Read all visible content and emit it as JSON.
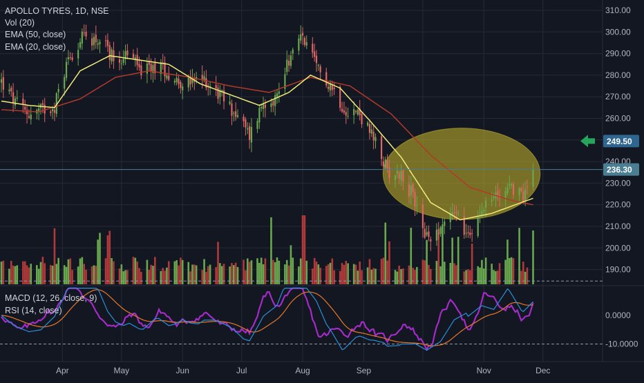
{
  "legend": {
    "symbol": "APOLLO TYRES, 1D, NSE",
    "volume": "Vol (20)",
    "ema50": "EMA (50, close)",
    "ema20": "EMA (20, close)",
    "macd": "MACD (12, 26, close, 9)",
    "rsi": "RSI (14, close)"
  },
  "colors": {
    "background": "#131722",
    "grid": "#262a36",
    "up": "#6aa84f",
    "down": "#e06666",
    "vol_up": "#6aa84f",
    "vol_down": "#b03a3a",
    "ema20": "#f2ea7a",
    "ema50": "#b23a2a",
    "macd": "#2a8fd8",
    "signal": "#e6782a",
    "rsi": "#a52bc9",
    "highlight": "#b6a829",
    "arrow": "#26a65b",
    "last_price_badge": "#4a7f93",
    "target_badge": "#2f6690"
  },
  "annotations": {
    "target_price": "249.50",
    "last_price": "236.30",
    "highlight_shape": "ellipse",
    "arrow": "left-arrow-icon"
  },
  "chart_data": [
    {
      "type": "candlestick",
      "title": "APOLLO TYRES, 1D, NSE",
      "x_labels": [
        "Apr",
        "May",
        "Jun",
        "Jul",
        "Aug",
        "Sep",
        "Nov",
        "Dec"
      ],
      "y_ticks": [
        "310.00",
        "300.00",
        "290.00",
        "280.00",
        "270.00",
        "260.00",
        "240.00",
        "230.00",
        "220.00",
        "210.00",
        "200.00",
        "190.00"
      ],
      "ylim": [
        186,
        313
      ],
      "close_path": [
        {
          "t": "Mar 1",
          "v": 277
        },
        {
          "t": "Mar 8",
          "v": 267
        },
        {
          "t": "Mar 15",
          "v": 262
        },
        {
          "t": "Mar 22",
          "v": 264
        },
        {
          "t": "Mar 28",
          "v": 266
        },
        {
          "t": "Apr 4",
          "v": 288
        },
        {
          "t": "Apr 12",
          "v": 298
        },
        {
          "t": "Apr 20",
          "v": 296
        },
        {
          "t": "Apr 28",
          "v": 287
        },
        {
          "t": "May 5",
          "v": 290
        },
        {
          "t": "May 12",
          "v": 281
        },
        {
          "t": "May 20",
          "v": 285
        },
        {
          "t": "May 28",
          "v": 278
        },
        {
          "t": "Jun 5",
          "v": 276
        },
        {
          "t": "Jun 12",
          "v": 278
        },
        {
          "t": "Jun 20",
          "v": 271
        },
        {
          "t": "Jun 28",
          "v": 262
        },
        {
          "t": "Jul 5",
          "v": 252
        },
        {
          "t": "Jul 12",
          "v": 268
        },
        {
          "t": "Jul 19",
          "v": 270
        },
        {
          "t": "Jul 24",
          "v": 286
        },
        {
          "t": "Aug 1",
          "v": 298
        },
        {
          "t": "Aug 8",
          "v": 283
        },
        {
          "t": "Aug 15",
          "v": 276
        },
        {
          "t": "Aug 22",
          "v": 265
        },
        {
          "t": "Aug 30",
          "v": 262
        },
        {
          "t": "Sep 6",
          "v": 250
        },
        {
          "t": "Sep 13",
          "v": 236
        },
        {
          "t": "Sep 20",
          "v": 234
        },
        {
          "t": "Sep 27",
          "v": 222
        },
        {
          "t": "Oct 3",
          "v": 204
        },
        {
          "t": "Oct 10",
          "v": 210
        },
        {
          "t": "Oct 17",
          "v": 218
        },
        {
          "t": "Oct 24",
          "v": 204
        },
        {
          "t": "Oct 31",
          "v": 220
        },
        {
          "t": "Nov 7",
          "v": 224
        },
        {
          "t": "Nov 14",
          "v": 229
        },
        {
          "t": "Nov 21",
          "v": 224
        },
        {
          "t": "Nov 26",
          "v": 236
        }
      ],
      "ema20_path": [
        {
          "t": "Mar 1",
          "v": 268
        },
        {
          "t": "Mar 15",
          "v": 266
        },
        {
          "t": "Mar 28",
          "v": 265
        },
        {
          "t": "Apr 10",
          "v": 282
        },
        {
          "t": "Apr 25",
          "v": 289
        },
        {
          "t": "May 10",
          "v": 287
        },
        {
          "t": "May 25",
          "v": 285
        },
        {
          "t": "Jun 10",
          "v": 276
        },
        {
          "t": "Jun 25",
          "v": 271
        },
        {
          "t": "Jul 10",
          "v": 266
        },
        {
          "t": "Jul 25",
          "v": 272
        },
        {
          "t": "Aug 5",
          "v": 280
        },
        {
          "t": "Aug 20",
          "v": 274
        },
        {
          "t": "Sep 5",
          "v": 258
        },
        {
          "t": "Sep 20",
          "v": 242
        },
        {
          "t": "Oct 5",
          "v": 221
        },
        {
          "t": "Oct 20",
          "v": 213
        },
        {
          "t": "Nov 5",
          "v": 216
        },
        {
          "t": "Nov 26",
          "v": 223
        }
      ],
      "ema50_path": [
        {
          "t": "Mar 1",
          "v": 264
        },
        {
          "t": "Mar 20",
          "v": 263
        },
        {
          "t": "Apr 10",
          "v": 269
        },
        {
          "t": "Apr 28",
          "v": 279
        },
        {
          "t": "May 15",
          "v": 282
        },
        {
          "t": "Jun 5",
          "v": 279
        },
        {
          "t": "Jun 25",
          "v": 275
        },
        {
          "t": "Jul 15",
          "v": 272
        },
        {
          "t": "Aug 5",
          "v": 279
        },
        {
          "t": "Aug 25",
          "v": 275
        },
        {
          "t": "Sep 15",
          "v": 262
        },
        {
          "t": "Oct 5",
          "v": 243
        },
        {
          "t": "Oct 25",
          "v": 228
        },
        {
          "t": "Nov 15",
          "v": 222
        },
        {
          "t": "Nov 26",
          "v": 220
        }
      ],
      "target_line": 249.5,
      "last_close": 236.3,
      "highlight": {
        "x_from": "Sep 15",
        "x_to": "Dec 1",
        "y_from": 217,
        "y_to": 244
      }
    },
    {
      "type": "line",
      "title": "MACD (12, 26, close, 9) / RSI (14, close)",
      "y_ticks": [
        "0.0000",
        "-10.0000"
      ],
      "ylim": [
        -15,
        12
      ],
      "reference_lines": [
        12,
        -10
      ]
    }
  ]
}
